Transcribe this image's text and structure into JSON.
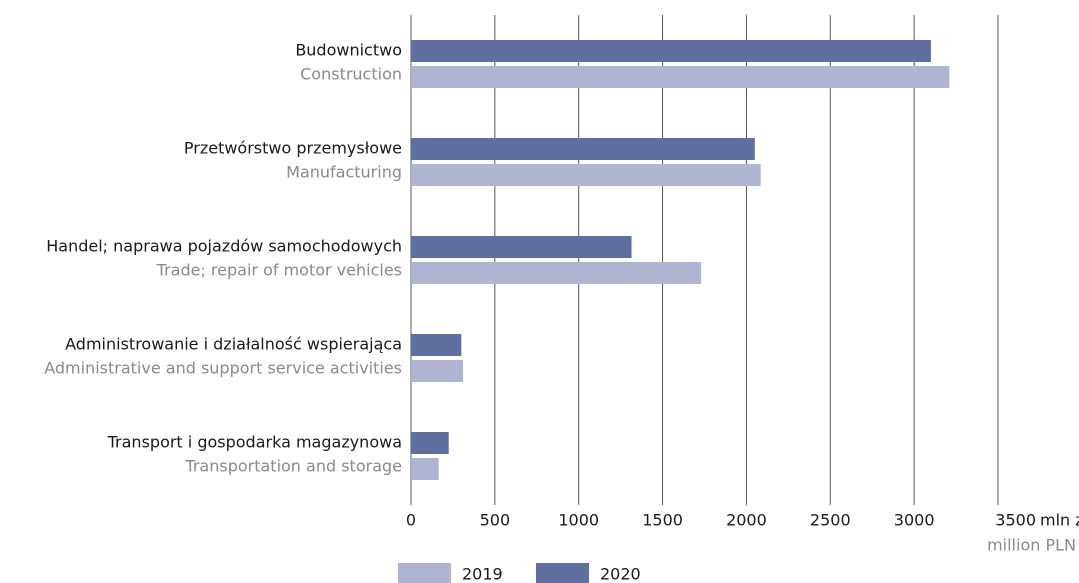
{
  "chart_data": {
    "type": "hbar",
    "categories": [
      "Budownictwo",
      "Przetwórstwo przemysłowe",
      "Handel; naprawa pojazdów samochodowych",
      "Administrowanie i działalność wspierająca",
      "Transport i gospodarka magazynowa"
    ],
    "categories_en": [
      "Construction",
      "Manufacturing",
      "Trade; repair of motor vehicles",
      "Administrative and support service activities",
      "Transportation and storage"
    ],
    "series": [
      {
        "name": "2020",
        "color": "#5f6fa2",
        "values": [
          3100,
          2050,
          1315,
          300,
          225
        ]
      },
      {
        "name": "2019",
        "color": "#b0b4d3",
        "values": [
          3210,
          2085,
          1730,
          310,
          165
        ]
      }
    ],
    "legend_order": [
      1,
      0
    ],
    "xlim": [
      0,
      3500
    ],
    "xticks": [
      0,
      500,
      1000,
      1500,
      2000,
      2500,
      3000,
      3500
    ],
    "x_unit": "mln zł",
    "x_unit_en": "million PLN",
    "grid": true
  }
}
